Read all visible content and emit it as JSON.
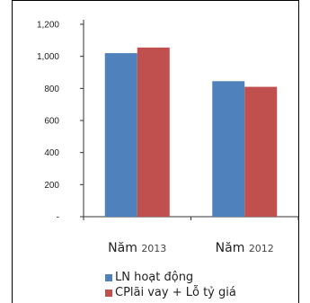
{
  "chart_data": {
    "type": "bar",
    "categories": [
      "Năm 2013",
      "Năm 2012"
    ],
    "category_parts": [
      {
        "main": "Năm",
        "year": "2013"
      },
      {
        "main": "Năm",
        "year": "2012"
      }
    ],
    "series": [
      {
        "name": "LN hoạt động",
        "values": [
          1020,
          845
        ],
        "color": "#4f81bd"
      },
      {
        "name": "CPlãi vay + Lỗ tỷ giá",
        "values": [
          1055,
          810
        ],
        "color": "#c0504d"
      }
    ],
    "y_ticks": [
      0,
      200,
      400,
      600,
      800,
      1000,
      1200
    ],
    "y_tick_labels": [
      "-",
      "200",
      "400",
      "600",
      "800",
      "1,000",
      "1,200"
    ],
    "ylim": [
      0,
      1200
    ],
    "grid": false,
    "legend_position": "bottom",
    "title": "",
    "xlabel": "",
    "ylabel": ""
  }
}
